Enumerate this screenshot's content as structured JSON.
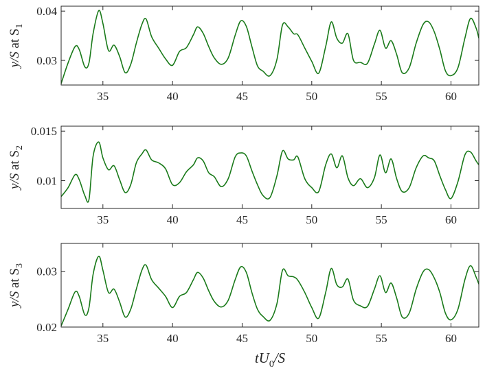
{
  "chart_data": [
    {
      "type": "line",
      "ylabel": {
        "main": "y/S at S",
        "sub": "1"
      },
      "xlim": [
        32,
        62
      ],
      "ylim": [
        0.025,
        0.041
      ],
      "x_ticks": [
        35,
        40,
        45,
        50,
        55,
        60
      ],
      "x_tick_labels": [
        "35",
        "40",
        "45",
        "50",
        "55",
        "60"
      ],
      "y_ticks": [
        0.03,
        0.04
      ],
      "y_tick_labels": [
        "0.03",
        "0.04"
      ],
      "series": [
        {
          "color": "#1a7a1a",
          "x": [
            32,
            32.5,
            33,
            33.3,
            33.7,
            34,
            34.3,
            34.7,
            35,
            35.4,
            35.8,
            36.2,
            36.6,
            37,
            37.4,
            37.8,
            38.1,
            38.5,
            39,
            39.5,
            40,
            40.5,
            41,
            41.5,
            41.8,
            42.2,
            42.6,
            43,
            43.5,
            44,
            44.5,
            44.9,
            45.3,
            45.7,
            46.1,
            46.5,
            47,
            47.5,
            47.9,
            48.3,
            48.7,
            49,
            49.5,
            50,
            50.5,
            51,
            51.4,
            51.8,
            52.2,
            52.6,
            53,
            53.5,
            54,
            54.5,
            54.9,
            55.3,
            55.7,
            56.1,
            56.5,
            57,
            57.5,
            58,
            58.4,
            58.8,
            59.2,
            59.6,
            60,
            60.5,
            61,
            61.4,
            61.8,
            62
          ],
          "y": [
            0.0253,
            0.0295,
            0.0328,
            0.0322,
            0.0287,
            0.0295,
            0.0355,
            0.0401,
            0.0375,
            0.032,
            0.0331,
            0.0308,
            0.0275,
            0.0292,
            0.0335,
            0.0373,
            0.0384,
            0.0348,
            0.0325,
            0.0303,
            0.029,
            0.0318,
            0.0326,
            0.0352,
            0.0368,
            0.0355,
            0.0328,
            0.0305,
            0.0292,
            0.0305,
            0.0351,
            0.038,
            0.0369,
            0.0328,
            0.0289,
            0.0278,
            0.0269,
            0.0302,
            0.0372,
            0.0368,
            0.0354,
            0.0352,
            0.0325,
            0.0298,
            0.0274,
            0.0328,
            0.0378,
            0.0345,
            0.0335,
            0.0354,
            0.03,
            0.0296,
            0.0294,
            0.0333,
            0.0361,
            0.0325,
            0.034,
            0.0312,
            0.0275,
            0.0285,
            0.0335,
            0.0373,
            0.0378,
            0.0358,
            0.0322,
            0.0279,
            0.0269,
            0.0285,
            0.0345,
            0.0385,
            0.0366,
            0.0345
          ]
        }
      ]
    },
    {
      "type": "line",
      "ylabel": {
        "main": "y/S at S",
        "sub": "2"
      },
      "xlim": [
        32,
        62
      ],
      "ylim": [
        0.0072,
        0.0155
      ],
      "x_ticks": [
        35,
        40,
        45,
        50,
        55,
        60
      ],
      "x_tick_labels": [
        "35",
        "40",
        "45",
        "50",
        "55",
        "60"
      ],
      "y_ticks": [
        0.01,
        0.015
      ],
      "y_tick_labels": [
        "0.01",
        "0.015"
      ],
      "series": [
        {
          "color": "#1a7a1a",
          "x": [
            32,
            32.5,
            33,
            33.3,
            33.7,
            34,
            34.3,
            34.7,
            35,
            35.4,
            35.8,
            36.2,
            36.6,
            37,
            37.4,
            37.8,
            38.1,
            38.5,
            39,
            39.5,
            40,
            40.5,
            41,
            41.5,
            41.8,
            42.2,
            42.6,
            43,
            43.5,
            44,
            44.5,
            44.9,
            45.3,
            45.7,
            46.1,
            46.5,
            47,
            47.5,
            47.9,
            48.3,
            48.7,
            49,
            49.5,
            50,
            50.5,
            51,
            51.4,
            51.8,
            52.2,
            52.6,
            53,
            53.5,
            54,
            54.5,
            54.9,
            55.3,
            55.7,
            56.1,
            56.5,
            57,
            57.5,
            58,
            58.4,
            58.8,
            59.2,
            59.6,
            60,
            60.5,
            61,
            61.4,
            61.8,
            62
          ],
          "y": [
            0.0084,
            0.0093,
            0.0106,
            0.0101,
            0.0085,
            0.0081,
            0.0125,
            0.0139,
            0.0123,
            0.0111,
            0.0115,
            0.0101,
            0.0088,
            0.0096,
            0.0118,
            0.0127,
            0.0131,
            0.0121,
            0.0118,
            0.0112,
            0.0096,
            0.0098,
            0.0109,
            0.0116,
            0.0123,
            0.012,
            0.0108,
            0.0104,
            0.0094,
            0.0102,
            0.0124,
            0.0128,
            0.0125,
            0.011,
            0.0096,
            0.0085,
            0.0083,
            0.0105,
            0.013,
            0.0122,
            0.0121,
            0.0124,
            0.0102,
            0.0093,
            0.0089,
            0.0116,
            0.0127,
            0.0113,
            0.0125,
            0.0103,
            0.0095,
            0.0102,
            0.0093,
            0.0103,
            0.0126,
            0.0108,
            0.0122,
            0.0102,
            0.0089,
            0.0093,
            0.0113,
            0.0125,
            0.0123,
            0.012,
            0.0105,
            0.0091,
            0.0082,
            0.0099,
            0.0126,
            0.0129,
            0.012,
            0.0116
          ]
        }
      ]
    },
    {
      "type": "line",
      "ylabel": {
        "main": "y/S at S",
        "sub": "3"
      },
      "xlim": [
        32,
        62
      ],
      "ylim": [
        0.02,
        0.035
      ],
      "xlabel": {
        "main": "tU",
        "sub": "0",
        "tail": "/S"
      },
      "x_ticks": [
        35,
        40,
        45,
        50,
        55,
        60
      ],
      "x_tick_labels": [
        "35",
        "40",
        "45",
        "50",
        "55",
        "60"
      ],
      "y_ticks": [
        0.02,
        0.03
      ],
      "y_tick_labels": [
        "0.02",
        "0.03"
      ],
      "series": [
        {
          "color": "#1a7a1a",
          "x": [
            32,
            32.5,
            33,
            33.3,
            33.7,
            34,
            34.3,
            34.7,
            35,
            35.4,
            35.8,
            36.2,
            36.6,
            37,
            37.4,
            37.8,
            38.1,
            38.5,
            39,
            39.5,
            40,
            40.5,
            41,
            41.5,
            41.8,
            42.2,
            42.6,
            43,
            43.5,
            44,
            44.5,
            44.9,
            45.3,
            45.7,
            46.1,
            46.5,
            47,
            47.5,
            47.9,
            48.3,
            48.7,
            49,
            49.5,
            50,
            50.5,
            51,
            51.4,
            51.8,
            52.2,
            52.6,
            53,
            53.5,
            54,
            54.5,
            54.9,
            55.3,
            55.7,
            56.1,
            56.5,
            57,
            57.5,
            58,
            58.4,
            58.8,
            59.2,
            59.6,
            60,
            60.5,
            61,
            61.4,
            61.8,
            62
          ],
          "y": [
            0.0202,
            0.0232,
            0.0263,
            0.0255,
            0.0222,
            0.0235,
            0.0295,
            0.0327,
            0.0302,
            0.0262,
            0.0268,
            0.0245,
            0.0218,
            0.0232,
            0.0268,
            0.0302,
            0.0311,
            0.0285,
            0.027,
            0.0255,
            0.0235,
            0.0255,
            0.0262,
            0.0285,
            0.0298,
            0.0288,
            0.0265,
            0.0246,
            0.0236,
            0.0248,
            0.0285,
            0.0308,
            0.0298,
            0.0262,
            0.0232,
            0.0219,
            0.0212,
            0.0242,
            0.0302,
            0.0292,
            0.029,
            0.0284,
            0.0262,
            0.0235,
            0.0216,
            0.0262,
            0.0305,
            0.0276,
            0.0272,
            0.0286,
            0.0248,
            0.0238,
            0.0237,
            0.0268,
            0.0292,
            0.0262,
            0.0279,
            0.0252,
            0.0218,
            0.0225,
            0.0268,
            0.0299,
            0.0303,
            0.0288,
            0.0262,
            0.0225,
            0.0213,
            0.0232,
            0.0285,
            0.031,
            0.029,
            0.0277
          ]
        }
      ]
    }
  ]
}
